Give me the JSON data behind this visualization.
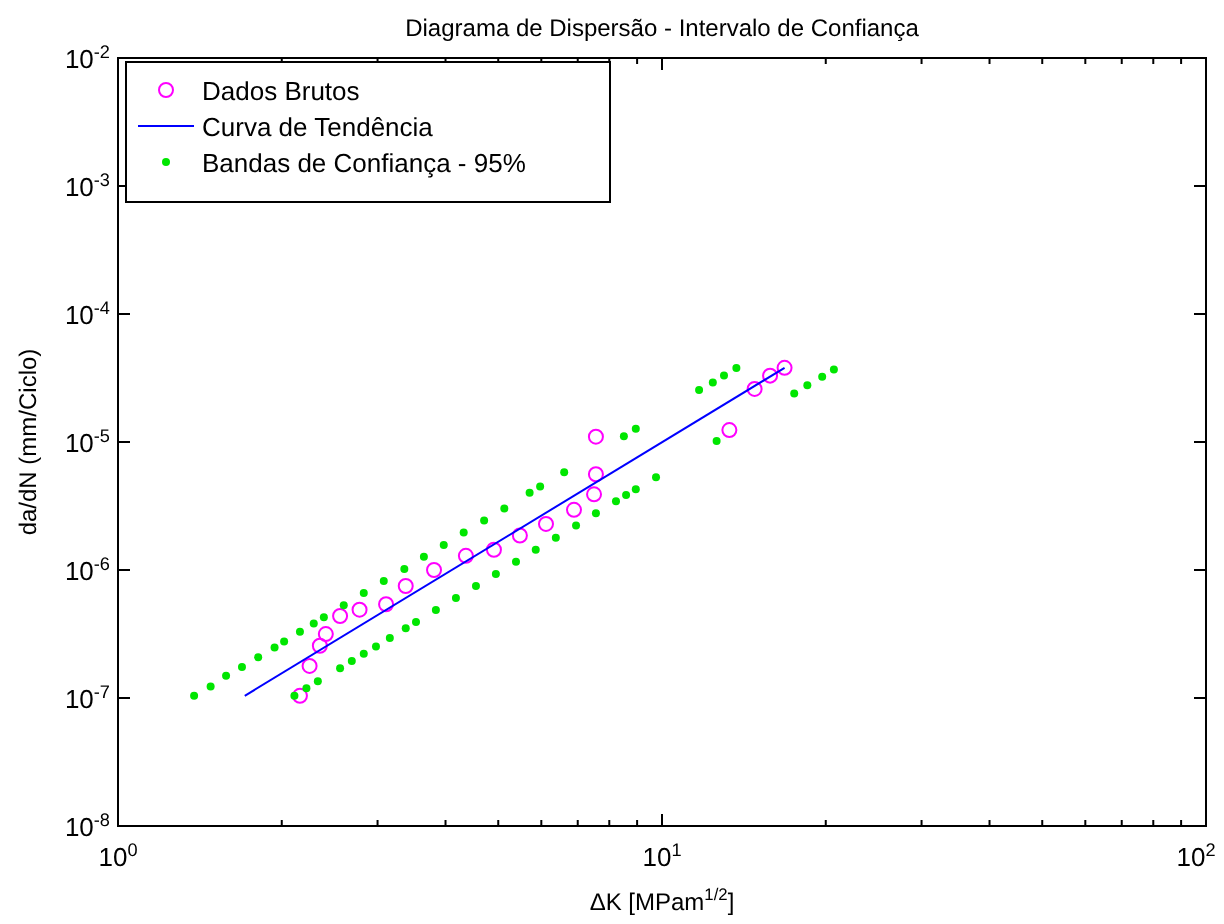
{
  "chart_data": {
    "type": "scatter",
    "title": "Diagrama de Dispersão - Intervalo de Confiança",
    "xlabel": "ΔK [MPam$^{1/2}$]",
    "ylabel": "da/dN (mm/Ciclo)",
    "log": "xy",
    "grid": false,
    "legend": "top left",
    "xlim": [
      1,
      100
    ],
    "ylim": [
      1e-08,
      0.01
    ],
    "xticks": [
      {
        "value": 1,
        "label": "10$^{0}$"
      },
      {
        "value": 2,
        "label": null
      },
      {
        "value": 3,
        "label": null
      },
      {
        "value": 4,
        "label": null
      },
      {
        "value": 5,
        "label": null
      },
      {
        "value": 6,
        "label": null
      },
      {
        "value": 7,
        "label": null
      },
      {
        "value": 8,
        "label": null
      },
      {
        "value": 9,
        "label": null
      },
      {
        "value": 10,
        "label": "10$^{1}$"
      },
      {
        "value": 20,
        "label": null
      },
      {
        "value": 30,
        "label": null
      },
      {
        "value": 40,
        "label": null
      },
      {
        "value": 50,
        "label": null
      },
      {
        "value": 60,
        "label": null
      },
      {
        "value": 70,
        "label": null
      },
      {
        "value": 80,
        "label": null
      },
      {
        "value": 90,
        "label": null
      },
      {
        "value": 100,
        "label": "10$^{2}$"
      }
    ],
    "yticks": [
      {
        "value": 1e-08,
        "label": "10$^{-8}$"
      },
      {
        "value": 1e-07,
        "label": "10$^{-7}$"
      },
      {
        "value": 1e-06,
        "label": "10$^{-6}$"
      },
      {
        "value": 1e-05,
        "label": "10$^{-5}$"
      },
      {
        "value": 0.0001,
        "label": "10$^{-4}$"
      },
      {
        "value": 0.001,
        "label": "10$^{-3}$"
      },
      {
        "value": 0.01,
        "label": "10$^{-2}$"
      }
    ],
    "series": [
      {
        "name": "Dados Brutos",
        "type": "scatter",
        "marker": "circle",
        "color": "#ff00ff",
        "x": [
          2.16,
          2.25,
          2.35,
          2.41,
          2.56,
          2.78,
          3.11,
          3.38,
          3.81,
          4.36,
          4.91,
          5.48,
          6.12,
          6.89,
          7.5,
          7.56,
          7.56,
          13.3,
          14.8,
          15.8,
          16.8
        ],
        "values": [
          1.04e-07,
          1.78e-07,
          2.56e-07,
          3.16e-07,
          4.37e-07,
          4.9e-07,
          5.4e-07,
          7.5e-07,
          1e-06,
          1.29e-06,
          1.44e-06,
          1.86e-06,
          2.29e-06,
          2.95e-06,
          3.9e-06,
          5.6e-06,
          1.1e-05,
          1.24e-05,
          2.6e-05,
          3.3e-05,
          3.8e-05
        ]
      },
      {
        "name": "Curva de Tendência",
        "type": "line",
        "marker": "none",
        "line_style": "solid",
        "color": "#0000ff",
        "x": [
          1.71,
          16.8
        ],
        "values": [
          1.04e-07,
          3.8e-05
        ]
      },
      {
        "name": "Bandas de Confiança - 95%",
        "type": "scatter",
        "marker": "circle",
        "color": "#00e600",
        "x": [
          1.38,
          1.48,
          1.58,
          1.69,
          1.81,
          1.94,
          2.02,
          2.16,
          2.29,
          2.39,
          2.6,
          2.83,
          3.08,
          3.36,
          3.65,
          3.97,
          4.32,
          4.71,
          5.13,
          5.71,
          5.97,
          6.61,
          8.51,
          8.95,
          11.7,
          12.4,
          13.0,
          13.7,
          2.11,
          2.22,
          2.33,
          2.56,
          2.69,
          2.83,
          2.98,
          3.16,
          3.38,
          3.53,
          3.84,
          4.18,
          4.55,
          4.95,
          5.39,
          5.86,
          6.38,
          6.95,
          7.56,
          8.23,
          8.59,
          8.95,
          9.75,
          12.6,
          17.5,
          18.5,
          19.7,
          20.7
        ],
        "values": [
          1.04e-07,
          1.23e-07,
          1.49e-07,
          1.75e-07,
          2.08e-07,
          2.48e-07,
          2.76e-07,
          3.3e-07,
          3.82e-07,
          4.28e-07,
          5.3e-07,
          6.6e-07,
          8.2e-07,
          1.02e-06,
          1.27e-06,
          1.57e-06,
          1.96e-06,
          2.44e-06,
          3.03e-06,
          4.01e-06,
          4.49e-06,
          5.8e-06,
          1.11e-05,
          1.27e-05,
          2.55e-05,
          2.91e-05,
          3.31e-05,
          3.78e-05,
          1.04e-07,
          1.19e-07,
          1.35e-07,
          1.71e-07,
          1.95e-07,
          2.22e-07,
          2.53e-07,
          2.94e-07,
          3.5e-07,
          3.92e-07,
          4.88e-07,
          6.03e-07,
          7.5e-07,
          9.3e-07,
          1.16e-06,
          1.44e-06,
          1.79e-06,
          2.23e-06,
          2.77e-06,
          3.44e-06,
          3.85e-06,
          4.28e-06,
          5.3e-06,
          1.02e-05,
          2.39e-05,
          2.77e-05,
          3.24e-05,
          3.68e-05
        ]
      }
    ]
  }
}
